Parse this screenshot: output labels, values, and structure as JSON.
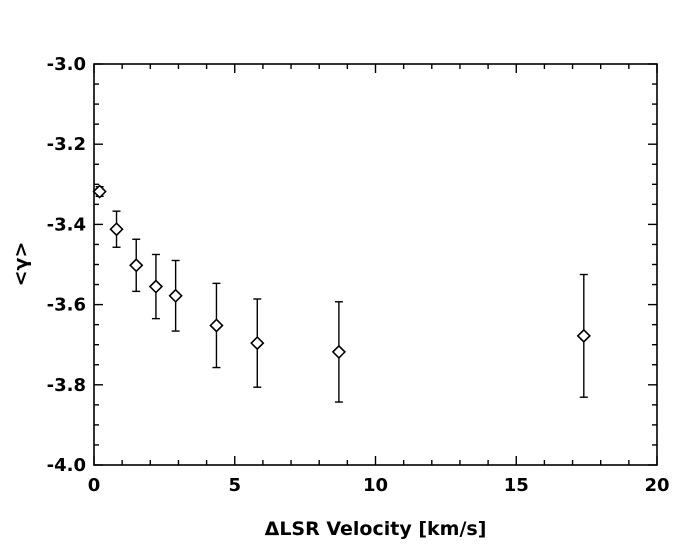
{
  "chart_data": {
    "type": "scatter",
    "title": "",
    "xlabel": "ΔLSR Velocity [km/s]",
    "ylabel": "<γ>",
    "xlim": [
      0,
      20
    ],
    "ylim": [
      -4.0,
      -3.0
    ],
    "xticks": [
      0,
      5,
      10,
      15,
      20
    ],
    "yticks": [
      -4.0,
      -3.8,
      -3.6,
      -3.4,
      -3.2,
      -3.0
    ],
    "xtick_labels": [
      "0",
      "5",
      "10",
      "15",
      "20"
    ],
    "ytick_labels": [
      "-4.0",
      "-3.8",
      "-3.6",
      "-3.4",
      "-3.2",
      "-3.0"
    ],
    "grid": false,
    "legend": "none",
    "marker": "diamond",
    "series": [
      {
        "points": [
          {
            "x": 0.2,
            "y": -3.318,
            "err": 0.012
          },
          {
            "x": 0.8,
            "y": -3.412,
            "err": 0.045
          },
          {
            "x": 1.5,
            "y": -3.502,
            "err": 0.065
          },
          {
            "x": 2.2,
            "y": -3.555,
            "err": 0.08
          },
          {
            "x": 2.9,
            "y": -3.578,
            "err": 0.088
          },
          {
            "x": 4.35,
            "y": -3.652,
            "err": 0.105
          },
          {
            "x": 5.8,
            "y": -3.696,
            "err": 0.11
          },
          {
            "x": 8.7,
            "y": -3.718,
            "err": 0.125
          },
          {
            "x": 17.4,
            "y": -3.678,
            "err": 0.153
          }
        ]
      }
    ]
  }
}
